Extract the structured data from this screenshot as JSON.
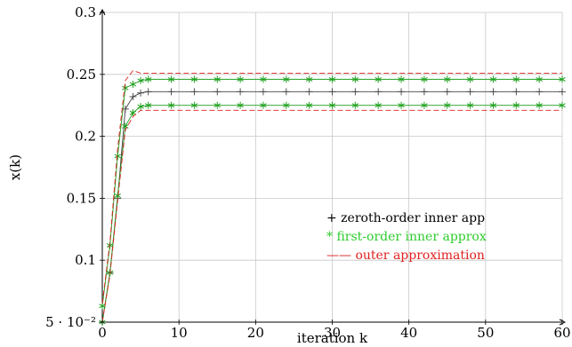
{
  "chart_data": {
    "type": "line",
    "xlabel": "iteration k",
    "ylabel": "x(k)",
    "xlim": [
      0,
      60
    ],
    "ylim": [
      0.05,
      0.3
    ],
    "grid": true,
    "legend_position": "right",
    "x_ticks": [
      {
        "value": 0,
        "label": "0"
      },
      {
        "value": 10,
        "label": "10"
      },
      {
        "value": 20,
        "label": "20"
      },
      {
        "value": 30,
        "label": "30"
      },
      {
        "value": 40,
        "label": "40"
      },
      {
        "value": 50,
        "label": "50"
      },
      {
        "value": 60,
        "label": "60"
      }
    ],
    "y_ticks": [
      {
        "value": 0.05,
        "label": "5 · 10⁻²"
      },
      {
        "value": 0.1,
        "label": "0.1"
      },
      {
        "value": 0.15,
        "label": "0.15"
      },
      {
        "value": 0.2,
        "label": "0.2"
      },
      {
        "value": 0.25,
        "label": "0.25"
      },
      {
        "value": 0.3,
        "label": "0.3"
      }
    ],
    "series": [
      {
        "name": "zeroth-order inner app",
        "color": "#404040",
        "marker": "plus",
        "dash": "solid",
        "lines": [
          {
            "x": [
              0,
              1,
              2,
              3,
              4,
              5,
              6,
              9,
              12,
              15,
              18,
              21,
              24,
              27,
              30,
              33,
              36,
              39,
              42,
              45,
              48,
              51,
              54,
              57,
              60
            ],
            "y": [
              0.05,
              0.09,
              0.15,
              0.222,
              0.232,
              0.235,
              0.236,
              0.236,
              0.236,
              0.236,
              0.236,
              0.236,
              0.236,
              0.236,
              0.236,
              0.236,
              0.236,
              0.236,
              0.236,
              0.236,
              0.236,
              0.236,
              0.236,
              0.236,
              0.236
            ]
          }
        ]
      },
      {
        "name": "first-order inner approx",
        "color": "#1fa01f",
        "marker": "star",
        "dash": "solid",
        "lines": [
          {
            "x": [
              0,
              1,
              2,
              3,
              4,
              5,
              6,
              9,
              12,
              15,
              18,
              21,
              24,
              27,
              30,
              33,
              36,
              39,
              42,
              45,
              48,
              51,
              54,
              57,
              60
            ],
            "y": [
              0.063,
              0.112,
              0.184,
              0.239,
              0.242,
              0.245,
              0.246,
              0.246,
              0.246,
              0.246,
              0.246,
              0.246,
              0.246,
              0.246,
              0.246,
              0.246,
              0.246,
              0.246,
              0.246,
              0.246,
              0.246,
              0.246,
              0.246,
              0.246,
              0.246
            ]
          },
          {
            "x": [
              0,
              1,
              2,
              3,
              4,
              5,
              6,
              9,
              12,
              15,
              18,
              21,
              24,
              27,
              30,
              33,
              36,
              39,
              42,
              45,
              48,
              51,
              54,
              57,
              60
            ],
            "y": [
              0.05,
              0.09,
              0.152,
              0.208,
              0.219,
              0.224,
              0.225,
              0.225,
              0.225,
              0.225,
              0.225,
              0.225,
              0.225,
              0.225,
              0.225,
              0.225,
              0.225,
              0.225,
              0.225,
              0.225,
              0.225,
              0.225,
              0.225,
              0.225,
              0.225
            ]
          }
        ]
      },
      {
        "name": "outer approximation",
        "color": "#e02020",
        "marker": "none",
        "dash": "dashed",
        "lines": [
          {
            "x": [
              0,
              1,
              2,
              3,
              4,
              5,
              60
            ],
            "y": [
              0.065,
              0.115,
              0.19,
              0.245,
              0.253,
              0.251,
              0.251
            ]
          },
          {
            "x": [
              0,
              1,
              2,
              3,
              4,
              5,
              60
            ],
            "y": [
              0.05,
              0.088,
              0.148,
              0.205,
              0.216,
              0.221,
              0.221
            ]
          }
        ]
      }
    ],
    "legend": [
      {
        "symbol": "+",
        "label": "zeroth-order inner app",
        "color": "#000000"
      },
      {
        "symbol": "*",
        "label": "first-order inner approx",
        "color": "#2ecc2e"
      },
      {
        "symbol": "——",
        "label": "outer approximation",
        "color": "#e02020"
      }
    ]
  }
}
